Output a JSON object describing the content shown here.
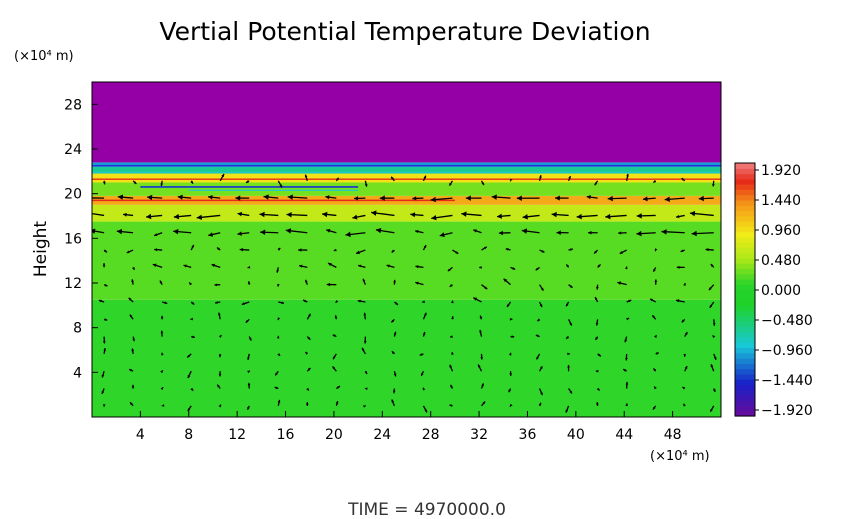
{
  "chart_data": {
    "type": "heatmap",
    "title": "Vertial Potential Temperature Deviation",
    "ylabel": "Height",
    "x_unit": "(×10⁴ m)",
    "y_unit": "(×10⁴ m)",
    "xlim": [
      0,
      52
    ],
    "ylim": [
      0,
      30
    ],
    "x_ticks": [
      4,
      8,
      12,
      16,
      20,
      24,
      28,
      32,
      36,
      40,
      44,
      48
    ],
    "y_ticks": [
      4,
      8,
      12,
      16,
      20,
      24,
      28
    ],
    "colorbar": {
      "min": -1.92,
      "max": 1.92,
      "ticks": [
        "1.920",
        "1.440",
        "0.960",
        "0.480",
        "0.000",
        "−0.480",
        "−0.960",
        "−1.440",
        "−1.920"
      ]
    },
    "layers": [
      {
        "y_from": 0,
        "y_to": 10.5,
        "value": 0.1
      },
      {
        "y_from": 10.5,
        "y_to": 17.5,
        "value": 0.22
      },
      {
        "y_from": 17.5,
        "y_to": 19.0,
        "value": 0.6
      },
      {
        "y_from": 19.0,
        "y_to": 19.8,
        "value": 1.2
      },
      {
        "y_from": 19.8,
        "y_to": 21.0,
        "value": 0.3
      },
      {
        "y_from": 21.0,
        "y_to": 21.8,
        "value": 0.9
      },
      {
        "y_from": 21.8,
        "y_to": 22.4,
        "value": -0.6
      },
      {
        "y_from": 22.4,
        "y_to": 22.8,
        "value": -1.0
      },
      {
        "y_from": 22.8,
        "y_to": 30,
        "value": -1.92
      }
    ],
    "footer": "TIME  =  4970000.0",
    "colors": {
      "magenta": "#9400a5",
      "blue": "#1b2fd6",
      "cyan": "#18c8d8",
      "green": "#28d42a",
      "lime": "#a8e818",
      "yellow": "#f2ec18",
      "orange": "#f59a18",
      "red": "#e82818",
      "pink": "#f08080",
      "purple_bottom": "#6a0a9a"
    }
  }
}
